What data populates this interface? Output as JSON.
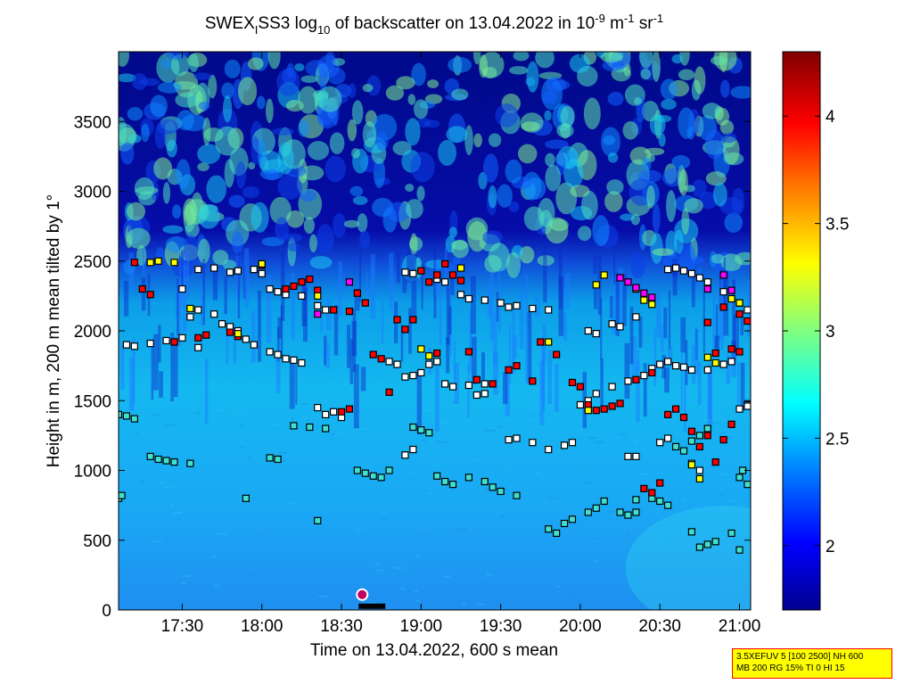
{
  "chart_data": {
    "type": "heatmap",
    "title": {
      "prefix": "SWEX",
      "sub1": "I",
      "mid": "SS3 log",
      "sub2": "10",
      "rest": " of backscatter on 13.04.2022 in 10",
      "sup1": "-9",
      "unit1": " m",
      "sup2": "-1",
      "unit2": " sr",
      "sup3": "-1"
    },
    "xlabel": "Time on 13.04.2022, 600 s mean",
    "ylabel": "Height in m, 200 m mean tilted by 1°",
    "x_unit": "time of day (hours)",
    "xlim": [
      17.1,
      21.07
    ],
    "ylim": [
      0,
      4000
    ],
    "x_ticks": [
      {
        "label": "17:30",
        "value": 17.5
      },
      {
        "label": "18:00",
        "value": 18.0
      },
      {
        "label": "18:30",
        "value": 18.5
      },
      {
        "label": "19:00",
        "value": 19.0
      },
      {
        "label": "19:30",
        "value": 19.5
      },
      {
        "label": "20:00",
        "value": 20.0
      },
      {
        "label": "20:30",
        "value": 20.5
      },
      {
        "label": "21:00",
        "value": 21.0
      }
    ],
    "y_ticks": [
      {
        "label": "0",
        "value": 0
      },
      {
        "label": "500",
        "value": 500
      },
      {
        "label": "1000",
        "value": 1000
      },
      {
        "label": "1500",
        "value": 1500
      },
      {
        "label": "2000",
        "value": 2000
      },
      {
        "label": "2500",
        "value": 2500
      },
      {
        "label": "3000",
        "value": 3000
      },
      {
        "label": "3500",
        "value": 3500
      }
    ],
    "colorbar": {
      "clim": [
        1.7,
        4.3
      ],
      "ticks": [
        {
          "label": "2",
          "value": 2.0
        },
        {
          "label": "2.5",
          "value": 2.5
        },
        {
          "label": "3",
          "value": 3.0
        },
        {
          "label": "3.5",
          "value": 3.5
        },
        {
          "label": "4",
          "value": 4.0
        }
      ]
    },
    "colormap": [
      "#00008f",
      "#0000ff",
      "#0080ff",
      "#00ffff",
      "#80ff80",
      "#ffff00",
      "#ff8000",
      "#ff0000",
      "#800000"
    ],
    "layer_markers": [
      {
        "name": "lowest",
        "color": "#40e0d0",
        "points": [
          [
            17.1,
            1400
          ],
          [
            17.15,
            1390
          ],
          [
            17.2,
            1370
          ],
          [
            17.3,
            1100
          ],
          [
            17.35,
            1080
          ],
          [
            17.4,
            1070
          ],
          [
            17.45,
            1060
          ],
          [
            17.55,
            1050
          ],
          [
            17.1,
            800
          ],
          [
            17.12,
            820
          ],
          [
            17.9,
            800
          ],
          [
            18.05,
            1090
          ],
          [
            18.1,
            1080
          ],
          [
            18.2,
            1320
          ],
          [
            18.3,
            1310
          ],
          [
            18.4,
            1300
          ],
          [
            18.6,
            1000
          ],
          [
            18.65,
            980
          ],
          [
            18.7,
            960
          ],
          [
            18.75,
            950
          ],
          [
            18.95,
            1310
          ],
          [
            19.0,
            1290
          ],
          [
            19.05,
            1270
          ],
          [
            19.1,
            960
          ],
          [
            19.15,
            920
          ],
          [
            19.2,
            900
          ],
          [
            19.3,
            950
          ],
          [
            19.4,
            920
          ],
          [
            19.45,
            880
          ],
          [
            19.5,
            850
          ],
          [
            19.6,
            820
          ],
          [
            19.8,
            580
          ],
          [
            19.85,
            550
          ],
          [
            19.9,
            620
          ],
          [
            19.95,
            650
          ],
          [
            20.05,
            700
          ],
          [
            20.1,
            730
          ],
          [
            20.15,
            780
          ],
          [
            20.25,
            700
          ],
          [
            20.3,
            680
          ],
          [
            20.35,
            700
          ],
          [
            20.45,
            800
          ],
          [
            20.5,
            780
          ],
          [
            20.55,
            750
          ],
          [
            20.7,
            560
          ],
          [
            20.75,
            450
          ],
          [
            20.8,
            470
          ],
          [
            20.85,
            490
          ],
          [
            20.95,
            550
          ],
          [
            21.0,
            430
          ],
          [
            21.05,
            900
          ],
          [
            20.6,
            1170
          ],
          [
            20.65,
            1140
          ],
          [
            20.7,
            1210
          ],
          [
            20.75,
            1250
          ],
          [
            20.8,
            1300
          ],
          [
            20.35,
            790
          ],
          [
            21.05,
            1470
          ],
          [
            21.02,
            1000
          ],
          [
            21.0,
            950
          ],
          [
            18.35,
            640
          ],
          [
            18.8,
            1000
          ]
        ]
      },
      {
        "name": "low",
        "color": "#ffffff",
        "points": [
          [
            17.15,
            1900
          ],
          [
            17.2,
            1890
          ],
          [
            17.3,
            1910
          ],
          [
            17.4,
            1930
          ],
          [
            17.5,
            1950
          ],
          [
            17.6,
            1880
          ],
          [
            17.55,
            2100
          ],
          [
            17.6,
            2150
          ],
          [
            17.7,
            2120
          ],
          [
            17.75,
            2050
          ],
          [
            17.8,
            2030
          ],
          [
            17.85,
            2000
          ],
          [
            17.9,
            1940
          ],
          [
            17.95,
            1900
          ],
          [
            18.05,
            1850
          ],
          [
            18.1,
            1830
          ],
          [
            18.15,
            1800
          ],
          [
            18.2,
            1790
          ],
          [
            18.25,
            1770
          ],
          [
            18.35,
            1450
          ],
          [
            18.4,
            1400
          ],
          [
            18.45,
            1420
          ],
          [
            18.5,
            1380
          ],
          [
            18.8,
            1780
          ],
          [
            18.85,
            1760
          ],
          [
            18.9,
            1670
          ],
          [
            18.95,
            1680
          ],
          [
            19.0,
            1700
          ],
          [
            19.05,
            1760
          ],
          [
            19.1,
            1780
          ],
          [
            19.15,
            1620
          ],
          [
            19.2,
            1600
          ],
          [
            19.3,
            1610
          ],
          [
            19.4,
            1620
          ],
          [
            19.55,
            1220
          ],
          [
            19.6,
            1230
          ],
          [
            19.7,
            1200
          ],
          [
            19.8,
            1150
          ],
          [
            19.9,
            1180
          ],
          [
            19.95,
            1200
          ],
          [
            20.0,
            1470
          ],
          [
            20.05,
            1500
          ],
          [
            20.1,
            1550
          ],
          [
            20.2,
            1600
          ],
          [
            20.3,
            1640
          ],
          [
            20.4,
            1680
          ],
          [
            20.45,
            1730
          ],
          [
            20.5,
            1760
          ],
          [
            20.55,
            1780
          ],
          [
            20.6,
            1750
          ],
          [
            20.65,
            1740
          ],
          [
            20.7,
            1720
          ],
          [
            20.8,
            1720
          ],
          [
            20.9,
            1760
          ],
          [
            20.95,
            1780
          ],
          [
            21.0,
            1440
          ],
          [
            21.05,
            1460
          ],
          [
            17.5,
            2300
          ],
          [
            17.6,
            2440
          ],
          [
            17.7,
            2450
          ],
          [
            17.8,
            2420
          ],
          [
            17.85,
            2430
          ],
          [
            17.95,
            2440
          ],
          [
            18.0,
            2410
          ],
          [
            18.05,
            2300
          ],
          [
            18.1,
            2280
          ],
          [
            18.15,
            2260
          ],
          [
            18.25,
            2250
          ],
          [
            18.35,
            2180
          ],
          [
            18.4,
            2150
          ],
          [
            18.9,
            2420
          ],
          [
            18.95,
            2410
          ],
          [
            19.1,
            2370
          ],
          [
            19.15,
            2350
          ],
          [
            19.25,
            2260
          ],
          [
            19.3,
            2230
          ],
          [
            19.4,
            2220
          ],
          [
            19.5,
            2200
          ],
          [
            19.55,
            2170
          ],
          [
            19.6,
            2180
          ],
          [
            19.7,
            2160
          ],
          [
            19.8,
            2150
          ],
          [
            20.05,
            2000
          ],
          [
            20.1,
            1980
          ],
          [
            20.2,
            2050
          ],
          [
            20.25,
            2030
          ],
          [
            20.35,
            2100
          ],
          [
            20.55,
            2440
          ],
          [
            20.6,
            2450
          ],
          [
            20.65,
            2430
          ],
          [
            20.7,
            2410
          ],
          [
            20.75,
            2380
          ],
          [
            20.8,
            2350
          ],
          [
            20.9,
            2280
          ],
          [
            21.0,
            2200
          ],
          [
            21.05,
            2150
          ],
          [
            20.7,
            1050
          ],
          [
            20.75,
            1000
          ],
          [
            20.3,
            1100
          ],
          [
            20.35,
            1100
          ],
          [
            20.5,
            1200
          ],
          [
            20.55,
            1230
          ],
          [
            19.35,
            1540
          ],
          [
            19.4,
            1550
          ],
          [
            18.9,
            1110
          ],
          [
            18.95,
            1150
          ]
        ]
      },
      {
        "name": "mid",
        "color": "#ff0000",
        "points": [
          [
            17.2,
            2490
          ],
          [
            17.25,
            2300
          ],
          [
            17.3,
            2260
          ],
          [
            17.45,
            1920
          ],
          [
            17.6,
            1950
          ],
          [
            17.65,
            1970
          ],
          [
            17.85,
            1960
          ],
          [
            18.0,
            2470
          ],
          [
            18.15,
            2300
          ],
          [
            18.2,
            2320
          ],
          [
            18.25,
            2350
          ],
          [
            18.3,
            2370
          ],
          [
            18.35,
            2290
          ],
          [
            18.45,
            2150
          ],
          [
            18.55,
            2140
          ],
          [
            18.6,
            2270
          ],
          [
            18.65,
            2200
          ],
          [
            18.75,
            1800
          ],
          [
            18.85,
            2080
          ],
          [
            18.9,
            2010
          ],
          [
            19.0,
            2430
          ],
          [
            19.05,
            2350
          ],
          [
            19.1,
            2400
          ],
          [
            19.15,
            2480
          ],
          [
            19.2,
            2400
          ],
          [
            19.25,
            2360
          ],
          [
            19.35,
            1650
          ],
          [
            19.45,
            1620
          ],
          [
            19.55,
            1720
          ],
          [
            19.6,
            1750
          ],
          [
            19.7,
            1640
          ],
          [
            19.75,
            1920
          ],
          [
            19.85,
            1830
          ],
          [
            19.95,
            1630
          ],
          [
            20.0,
            1600
          ],
          [
            20.05,
            1470
          ],
          [
            20.1,
            1430
          ],
          [
            20.15,
            1440
          ],
          [
            20.2,
            1460
          ],
          [
            20.25,
            1480
          ],
          [
            20.35,
            1650
          ],
          [
            20.45,
            1700
          ],
          [
            20.55,
            1400
          ],
          [
            20.6,
            1440
          ],
          [
            20.65,
            1380
          ],
          [
            20.7,
            1280
          ],
          [
            20.75,
            1170
          ],
          [
            20.8,
            1250
          ],
          [
            20.85,
            1060
          ],
          [
            20.9,
            1220
          ],
          [
            20.95,
            1330
          ],
          [
            21.0,
            1850
          ],
          [
            21.05,
            2070
          ],
          [
            21.0,
            2120
          ],
          [
            20.8,
            2060
          ],
          [
            20.85,
            1840
          ],
          [
            20.95,
            1870
          ],
          [
            20.9,
            2170
          ],
          [
            20.4,
            870
          ],
          [
            20.45,
            840
          ],
          [
            20.5,
            910
          ],
          [
            18.55,
            1440
          ],
          [
            18.5,
            1420
          ],
          [
            18.8,
            1560
          ],
          [
            18.7,
            1830
          ],
          [
            19.1,
            1840
          ],
          [
            19.3,
            1850
          ],
          [
            18.95,
            2080
          ],
          [
            17.8,
            1990
          ]
        ]
      },
      {
        "name": "high",
        "color": "#ffff00",
        "points": [
          [
            17.3,
            2490
          ],
          [
            17.35,
            2500
          ],
          [
            17.45,
            2490
          ],
          [
            17.55,
            2160
          ],
          [
            18.0,
            2480
          ],
          [
            18.35,
            2250
          ],
          [
            19.0,
            1870
          ],
          [
            19.05,
            1820
          ],
          [
            19.25,
            2450
          ],
          [
            19.8,
            1920
          ],
          [
            20.05,
            1430
          ],
          [
            20.1,
            2330
          ],
          [
            20.15,
            2400
          ],
          [
            20.35,
            2300
          ],
          [
            20.4,
            2220
          ],
          [
            20.45,
            2190
          ],
          [
            20.8,
            1810
          ],
          [
            20.85,
            1770
          ],
          [
            20.95,
            2230
          ],
          [
            21.0,
            2200
          ],
          [
            20.75,
            940
          ],
          [
            20.7,
            1040
          ],
          [
            17.85,
            1980
          ]
        ]
      },
      {
        "name": "special",
        "color": "#ff00ff",
        "points": [
          [
            18.55,
            2350
          ],
          [
            18.35,
            2120
          ],
          [
            20.25,
            2380
          ],
          [
            20.3,
            2350
          ],
          [
            20.35,
            2310
          ],
          [
            20.4,
            2270
          ],
          [
            20.45,
            2240
          ],
          [
            20.9,
            2400
          ],
          [
            20.95,
            2290
          ],
          [
            20.8,
            2300
          ]
        ]
      }
    ],
    "surface_marker": {
      "x": 18.63,
      "y": 110
    }
  },
  "legend_box": {
    "line1": "3.5XEFUV 5 [100 2500] NH 600",
    "line2": "MB 200 RG 15% TI 0 HI 15"
  }
}
